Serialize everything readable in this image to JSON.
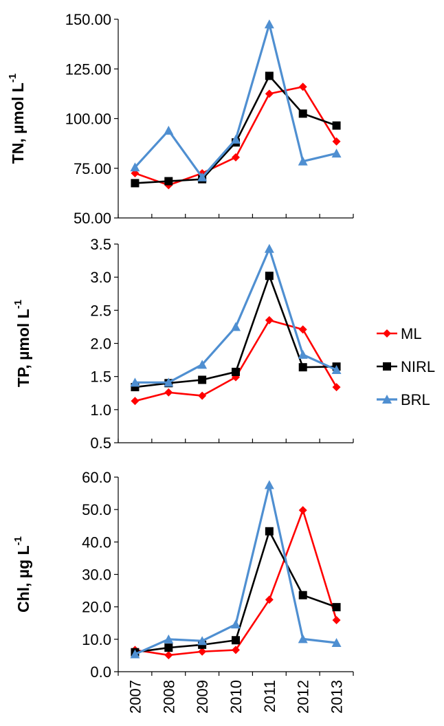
{
  "chart_data": [
    {
      "type": "line",
      "ylabel": "TN, µmol  L",
      "ylabel_sup": "-1",
      "ylim": [
        50,
        150
      ],
      "yticks": [
        50,
        75,
        100,
        125,
        150
      ],
      "tick_decimals": 2,
      "categories": [
        "2007",
        "2008",
        "2009",
        "2010",
        "2011",
        "2012",
        "2013"
      ],
      "series": [
        {
          "name": "ML",
          "values": [
            72.5,
            66.5,
            72.5,
            80.5,
            112.5,
            116,
            88.5
          ]
        },
        {
          "name": "NIRL",
          "values": [
            67.5,
            68.5,
            69.5,
            88,
            121.5,
            102.5,
            96.5
          ]
        },
        {
          "name": "BRL",
          "values": [
            75.5,
            94,
            70.5,
            89.5,
            147.5,
            78.5,
            82.5
          ]
        }
      ]
    },
    {
      "type": "line",
      "ylabel": "TP, µmol  L",
      "ylabel_sup": "-1",
      "ylim": [
        0.5,
        3.5
      ],
      "yticks": [
        0.5,
        1.0,
        1.5,
        2.0,
        2.5,
        3.0,
        3.5
      ],
      "tick_decimals": 1,
      "categories": [
        "2007",
        "2008",
        "2009",
        "2010",
        "2011",
        "2012",
        "2013"
      ],
      "series": [
        {
          "name": "ML",
          "values": [
            1.13,
            1.26,
            1.21,
            1.49,
            2.35,
            2.21,
            1.34
          ]
        },
        {
          "name": "NIRL",
          "values": [
            1.34,
            1.4,
            1.45,
            1.57,
            3.02,
            1.64,
            1.65
          ]
        },
        {
          "name": "BRL",
          "values": [
            1.41,
            1.41,
            1.68,
            2.25,
            3.43,
            1.83,
            1.6
          ]
        }
      ]
    },
    {
      "type": "line",
      "ylabel": "Chl, µg L",
      "ylabel_sup": "-1",
      "ylim": [
        0,
        60
      ],
      "yticks": [
        0,
        10,
        20,
        30,
        40,
        50,
        60
      ],
      "tick_decimals": 1,
      "categories": [
        "2007",
        "2008",
        "2009",
        "2010",
        "2011",
        "2012",
        "2013"
      ],
      "series": [
        {
          "name": "ML",
          "values": [
            6.7,
            5.1,
            6.2,
            6.7,
            22.2,
            49.8,
            15.9
          ]
        },
        {
          "name": "NIRL",
          "values": [
            6.0,
            7.4,
            8.3,
            9.7,
            43.3,
            23.6,
            19.9
          ]
        },
        {
          "name": "BRL",
          "values": [
            5.4,
            10.0,
            9.5,
            14.6,
            57.6,
            10.1,
            8.9
          ]
        }
      ]
    }
  ],
  "legend": {
    "entries": [
      "ML",
      "NIRL",
      "BRL"
    ]
  },
  "colors": {
    "ML": "#ff0000",
    "NIRL": "#000000",
    "BRL": "#4f8fd1"
  },
  "markers": {
    "ML": "diamond",
    "NIRL": "square",
    "BRL": "triangle"
  }
}
